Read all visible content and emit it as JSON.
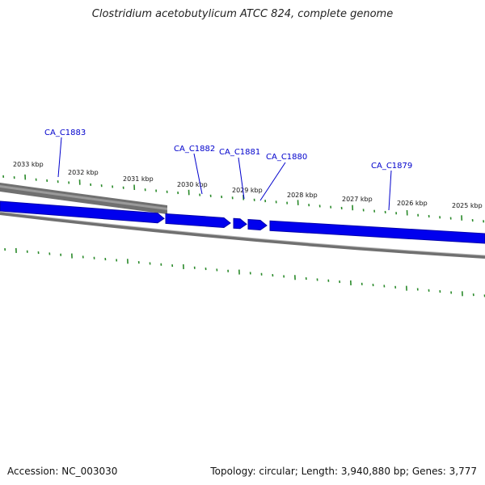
{
  "title": "Clostridium acetobutylicum ATCC 824, complete genome",
  "footer": {
    "accession": "Accession: NC_003030",
    "summary": "Topology: circular; Length: 3,940,880 bp; Genes: 3,777"
  },
  "colors": {
    "gene_forward": "#0000ee",
    "gene_border": "#0000aa",
    "backbone_gray": "#707070",
    "tick_green": "#2a8a2a",
    "label_blue": "#0000cc"
  },
  "scale_labels": [
    "2033 kbp",
    "2032 kbp",
    "2031 kbp",
    "2030 kbp",
    "2029 kbp",
    "2028 kbp",
    "2027 kbp",
    "2026 kbp",
    "2025 kbp"
  ],
  "genes": [
    "CA_C1883",
    "CA_C1882",
    "CA_C1881",
    "CA_C1880",
    "CA_C1879"
  ]
}
